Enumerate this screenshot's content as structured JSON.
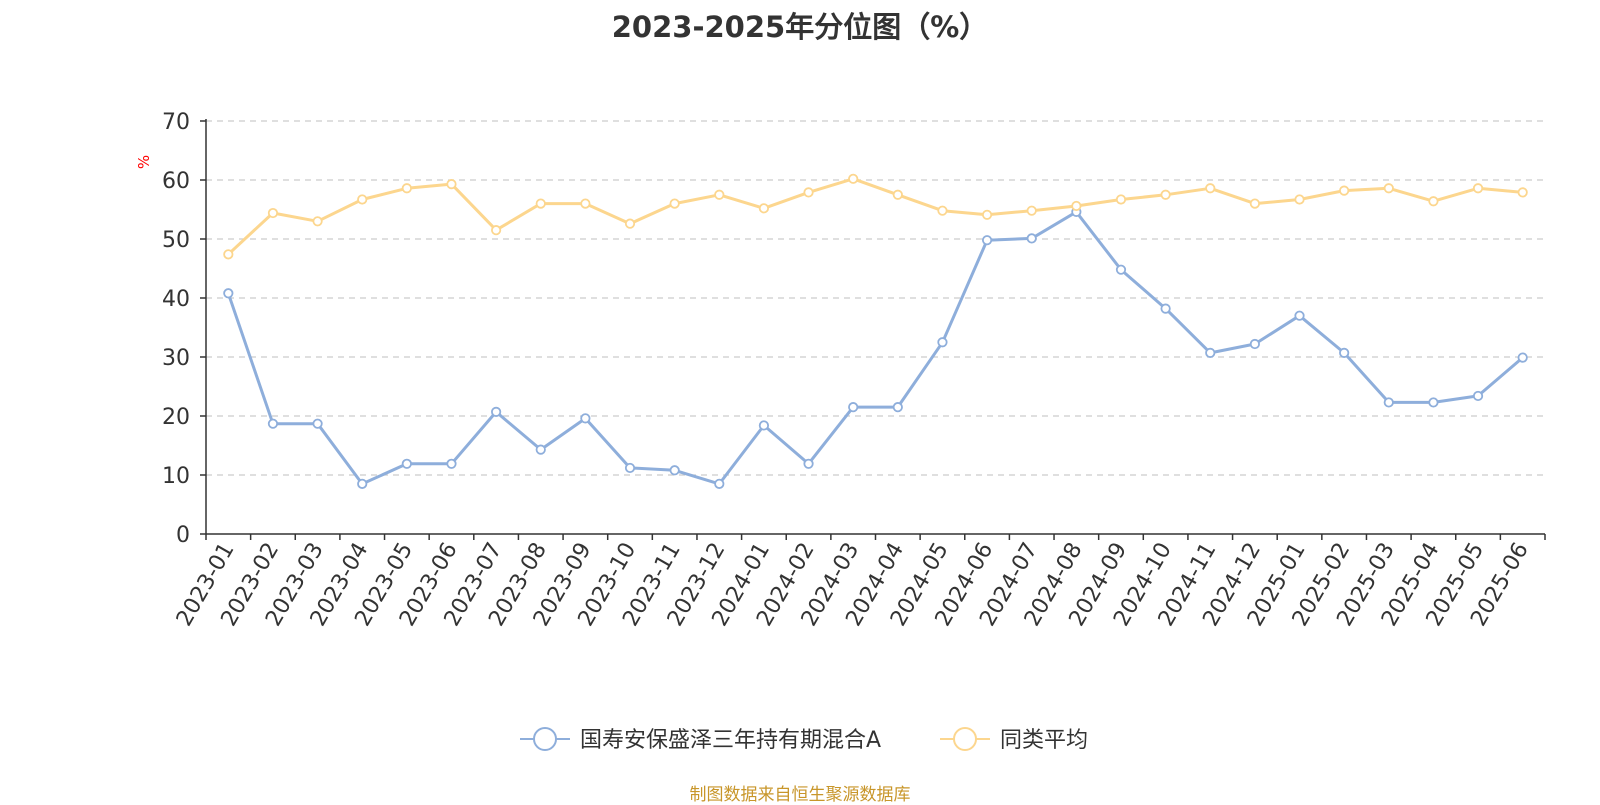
{
  "chart_data": {
    "type": "line",
    "title": "2023-2025年分位图（%）",
    "y_unit": "%",
    "ylim": [
      0,
      70
    ],
    "yticks": [
      0,
      10,
      20,
      30,
      40,
      50,
      60,
      70
    ],
    "grid": "horizontal dashed",
    "legend_position": "bottom-center",
    "categories": [
      "2023-01",
      "2023-02",
      "2023-03",
      "2023-04",
      "2023-05",
      "2023-06",
      "2023-07",
      "2023-08",
      "2023-09",
      "2023-10",
      "2023-11",
      "2023-12",
      "2024-01",
      "2024-02",
      "2024-03",
      "2024-04",
      "2024-05",
      "2024-06",
      "2024-07",
      "2024-08",
      "2024-09",
      "2024-10",
      "2024-11",
      "2024-12",
      "2025-01",
      "2025-02",
      "2025-03",
      "2025-04",
      "2025-05",
      "2025-06"
    ],
    "series": [
      {
        "name": "国寿安保盛泽三年持有期混合A",
        "color": "#8eaedb",
        "values": [
          40.8,
          18.7,
          18.7,
          8.5,
          11.9,
          11.9,
          20.7,
          14.3,
          19.6,
          11.2,
          10.8,
          8.5,
          18.4,
          11.9,
          21.5,
          21.5,
          32.5,
          49.8,
          50.1,
          54.6,
          44.8,
          38.2,
          30.7,
          32.2,
          37.0,
          30.7,
          22.3,
          22.3,
          23.4,
          29.9
        ]
      },
      {
        "name": "同类平均",
        "color": "#fcd68e",
        "values": [
          47.4,
          54.4,
          53.0,
          56.7,
          58.6,
          59.3,
          51.5,
          56.0,
          56.0,
          52.6,
          56.0,
          57.5,
          55.2,
          57.9,
          60.2,
          57.5,
          54.8,
          54.1,
          54.8,
          55.6,
          56.7,
          57.5,
          58.6,
          56.0,
          56.7,
          58.2,
          58.6,
          56.4,
          58.6,
          57.9
        ]
      }
    ]
  },
  "source_note": "制图数据来自恒生聚源数据库",
  "colors": {
    "axis": "#333333",
    "grid": "#cccccc",
    "unit_label": "#ff0000",
    "source_note": "#c8962a"
  }
}
